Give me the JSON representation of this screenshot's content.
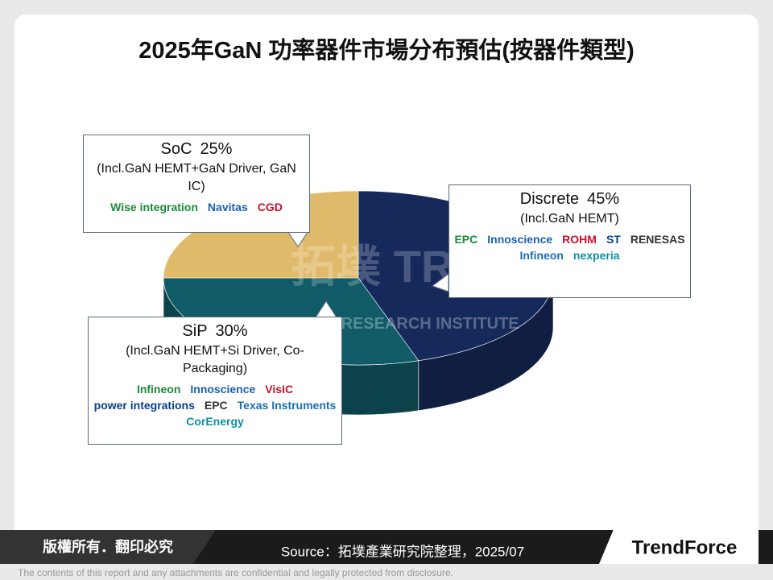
{
  "chart_data": {
    "type": "pie3d",
    "title": "2025年GaN 功率器件市場分布預估(按器件類型)",
    "categories": [
      "Discrete",
      "SiP",
      "SoC"
    ],
    "values": [
      45,
      30,
      25
    ],
    "value_labels": [
      "45%",
      "30%",
      "25%"
    ],
    "colors": [
      "#15295a",
      "#105b67",
      "#dfba6b"
    ],
    "descriptions": [
      "(Incl.GaN HEMT)",
      "(Incl.GaN HEMT+Si Driver, Co-Packaging)",
      "(Incl.GaN HEMT+GaN Driver,  GaN IC)"
    ],
    "logos": [
      [
        "EPC",
        "Innoscience",
        "ROHM",
        "ST",
        "RENESAS",
        "Infineon",
        "nexperia"
      ],
      [
        "Infineon",
        "Innoscience",
        "VisIC",
        "power integrations",
        "EPC",
        "Texas Instruments",
        "CorEnergy"
      ],
      [
        "Wise integration",
        "Navitas",
        "CGD"
      ]
    ]
  },
  "watermark": {
    "mark": "拓墣 TRI",
    "name": "TOPOLOGY RESEARCH INSTITUTE"
  },
  "footer": {
    "rights": "版權所有．翻印必究",
    "source": "Source：拓墣產業研究院整理，2025/07",
    "brand": "TrendForce",
    "disclaimer": "The contents of this report and any attachments are confidential and legally protected from disclosure."
  }
}
